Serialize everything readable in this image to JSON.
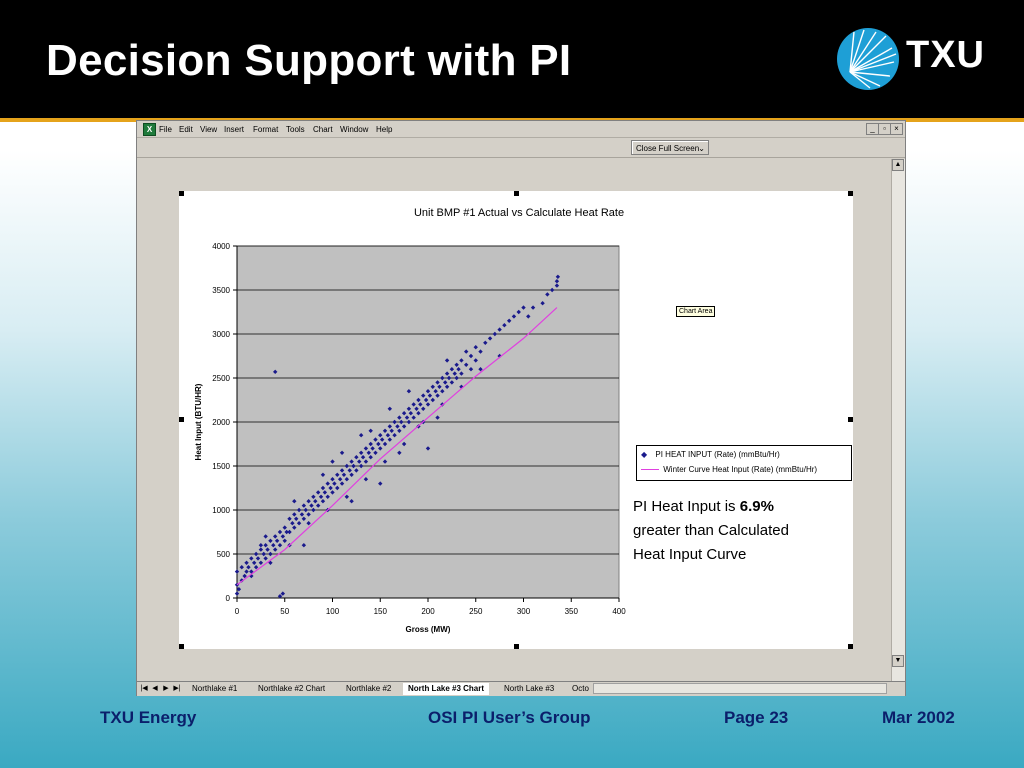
{
  "slide": {
    "title": "Decision Support with PI",
    "logo_text": "TXU",
    "footer": {
      "company": "TXU Energy",
      "event": "OSI PI User’s Group",
      "page": "Page 23",
      "date": "Mar 2002"
    }
  },
  "excel": {
    "menu": [
      "File",
      "Edit",
      "View",
      "Insert",
      "Format",
      "Tools",
      "Chart",
      "Window",
      "Help"
    ],
    "window_buttons": [
      "_",
      "▫",
      "×"
    ],
    "close_full_screen": "Close Full Screen",
    "tooltip": "Chart Area",
    "tabs": [
      "Northlake #1",
      "Northlake #2 Chart",
      "Northlake #2",
      "North Lake #3 Chart",
      "North Lake #3",
      "Octo"
    ],
    "active_tab": "North Lake #3 Chart"
  },
  "annotation": {
    "prefix": "PI Heat Input is ",
    "value": "6.9%",
    "suffix_line1": "greater than Calculated",
    "line2": "Heat Input Curve"
  },
  "chart_data": {
    "type": "scatter",
    "title": "Unit BMP #1 Actual vs Calculate Heat Rate",
    "xlabel": "Gross (MW)",
    "ylabel": "Heat Input (BTU/HR)",
    "xlim": [
      0,
      400
    ],
    "ylim": [
      0,
      4000
    ],
    "x_ticks": [
      0,
      50,
      100,
      150,
      200,
      250,
      300,
      350,
      400
    ],
    "y_ticks": [
      0,
      500,
      1000,
      1500,
      2000,
      2500,
      3000,
      3500,
      4000
    ],
    "grid": "horizontal",
    "plot_background": "#c0c0c0",
    "legend_position": "right",
    "series": [
      {
        "name": "PI HEAT INPUT (Rate) (mmBtu/Hr)",
        "kind": "scatter",
        "marker": "diamond",
        "color": "#1a1a8c",
        "points": [
          [
            0,
            50
          ],
          [
            0,
            150
          ],
          [
            0,
            300
          ],
          [
            2,
            100
          ],
          [
            5,
            200
          ],
          [
            5,
            350
          ],
          [
            8,
            250
          ],
          [
            10,
            300
          ],
          [
            10,
            400
          ],
          [
            12,
            350
          ],
          [
            15,
            450
          ],
          [
            15,
            300
          ],
          [
            18,
            400
          ],
          [
            20,
            500
          ],
          [
            20,
            350
          ],
          [
            22,
            450
          ],
          [
            25,
            400
          ],
          [
            25,
            550
          ],
          [
            28,
            500
          ],
          [
            30,
            450
          ],
          [
            30,
            600
          ],
          [
            32,
            550
          ],
          [
            35,
            500
          ],
          [
            35,
            650
          ],
          [
            38,
            600
          ],
          [
            40,
            550
          ],
          [
            40,
            700
          ],
          [
            42,
            650
          ],
          [
            45,
            600
          ],
          [
            45,
            750
          ],
          [
            48,
            700
          ],
          [
            50,
            800
          ],
          [
            50,
            650
          ],
          [
            52,
            750
          ],
          [
            55,
            900
          ],
          [
            55,
            750
          ],
          [
            58,
            850
          ],
          [
            60,
            950
          ],
          [
            60,
            800
          ],
          [
            62,
            900
          ],
          [
            65,
            1000
          ],
          [
            65,
            850
          ],
          [
            68,
            950
          ],
          [
            70,
            1050
          ],
          [
            70,
            900
          ],
          [
            72,
            1000
          ],
          [
            75,
            1100
          ],
          [
            75,
            950
          ],
          [
            78,
            1050
          ],
          [
            80,
            1150
          ],
          [
            80,
            1000
          ],
          [
            82,
            1100
          ],
          [
            85,
            1200
          ],
          [
            85,
            1050
          ],
          [
            88,
            1150
          ],
          [
            90,
            1250
          ],
          [
            90,
            1100
          ],
          [
            92,
            1200
          ],
          [
            95,
            1300
          ],
          [
            95,
            1150
          ],
          [
            98,
            1250
          ],
          [
            100,
            1350
          ],
          [
            100,
            1200
          ],
          [
            102,
            1300
          ],
          [
            105,
            1400
          ],
          [
            105,
            1250
          ],
          [
            108,
            1350
          ],
          [
            110,
            1450
          ],
          [
            110,
            1300
          ],
          [
            112,
            1400
          ],
          [
            115,
            1500
          ],
          [
            115,
            1350
          ],
          [
            118,
            1450
          ],
          [
            120,
            1550
          ],
          [
            120,
            1400
          ],
          [
            122,
            1500
          ],
          [
            125,
            1600
          ],
          [
            125,
            1450
          ],
          [
            128,
            1550
          ],
          [
            130,
            1650
          ],
          [
            130,
            1500
          ],
          [
            132,
            1600
          ],
          [
            135,
            1700
          ],
          [
            135,
            1550
          ],
          [
            138,
            1650
          ],
          [
            140,
            1750
          ],
          [
            140,
            1600
          ],
          [
            142,
            1700
          ],
          [
            145,
            1800
          ],
          [
            145,
            1650
          ],
          [
            148,
            1750
          ],
          [
            150,
            1850
          ],
          [
            150,
            1700
          ],
          [
            152,
            1800
          ],
          [
            155,
            1900
          ],
          [
            155,
            1750
          ],
          [
            158,
            1850
          ],
          [
            160,
            1950
          ],
          [
            160,
            1800
          ],
          [
            162,
            1900
          ],
          [
            165,
            2000
          ],
          [
            165,
            1850
          ],
          [
            168,
            1950
          ],
          [
            170,
            2050
          ],
          [
            170,
            1900
          ],
          [
            172,
            2000
          ],
          [
            175,
            2100
          ],
          [
            175,
            1950
          ],
          [
            178,
            2050
          ],
          [
            180,
            2150
          ],
          [
            180,
            2000
          ],
          [
            182,
            2100
          ],
          [
            185,
            2200
          ],
          [
            185,
            2050
          ],
          [
            188,
            2150
          ],
          [
            190,
            2250
          ],
          [
            190,
            2100
          ],
          [
            192,
            2200
          ],
          [
            195,
            2300
          ],
          [
            195,
            2150
          ],
          [
            198,
            2250
          ],
          [
            200,
            2350
          ],
          [
            200,
            2200
          ],
          [
            202,
            2300
          ],
          [
            205,
            2400
          ],
          [
            205,
            2250
          ],
          [
            208,
            2350
          ],
          [
            210,
            2450
          ],
          [
            210,
            2300
          ],
          [
            212,
            2400
          ],
          [
            215,
            2500
          ],
          [
            215,
            2350
          ],
          [
            218,
            2450
          ],
          [
            220,
            2550
          ],
          [
            220,
            2400
          ],
          [
            222,
            2500
          ],
          [
            225,
            2600
          ],
          [
            225,
            2450
          ],
          [
            228,
            2550
          ],
          [
            230,
            2650
          ],
          [
            230,
            2500
          ],
          [
            232,
            2600
          ],
          [
            235,
            2700
          ],
          [
            235,
            2550
          ],
          [
            240,
            2650
          ],
          [
            240,
            2800
          ],
          [
            245,
            2750
          ],
          [
            245,
            2600
          ],
          [
            250,
            2850
          ],
          [
            250,
            2700
          ],
          [
            255,
            2800
          ],
          [
            260,
            2900
          ],
          [
            265,
            2950
          ],
          [
            270,
            3000
          ],
          [
            275,
            3050
          ],
          [
            280,
            3100
          ],
          [
            285,
            3150
          ],
          [
            290,
            3200
          ],
          [
            295,
            3250
          ],
          [
            300,
            3300
          ],
          [
            305,
            3200
          ],
          [
            310,
            3300
          ],
          [
            320,
            3350
          ],
          [
            325,
            3450
          ],
          [
            330,
            3500
          ],
          [
            335,
            3550
          ],
          [
            335,
            3600
          ],
          [
            336,
            3650
          ],
          [
            40,
            2570
          ],
          [
            48,
            50
          ],
          [
            45,
            20
          ],
          [
            120,
            1100
          ],
          [
            150,
            1300
          ],
          [
            200,
            1700
          ],
          [
            90,
            1400
          ],
          [
            110,
            1650
          ],
          [
            140,
            1900
          ],
          [
            180,
            2350
          ],
          [
            220,
            2700
          ],
          [
            60,
            1100
          ],
          [
            30,
            700
          ],
          [
            70,
            600
          ],
          [
            130,
            1850
          ],
          [
            170,
            1650
          ],
          [
            210,
            2050
          ],
          [
            160,
            2150
          ],
          [
            190,
            1950
          ],
          [
            100,
            1550
          ],
          [
            25,
            600
          ],
          [
            15,
            250
          ],
          [
            35,
            400
          ],
          [
            55,
            600
          ],
          [
            75,
            850
          ],
          [
            95,
            1000
          ],
          [
            115,
            1150
          ],
          [
            135,
            1350
          ],
          [
            155,
            1550
          ],
          [
            175,
            1750
          ],
          [
            195,
            2000
          ],
          [
            215,
            2200
          ],
          [
            235,
            2400
          ],
          [
            255,
            2600
          ],
          [
            275,
            2750
          ]
        ]
      },
      {
        "name": "Winter Curve Heat Input (Rate) (mmBtu/Hr)",
        "kind": "line",
        "color": "#e040e0",
        "points": [
          [
            0,
            150
          ],
          [
            50,
            550
          ],
          [
            100,
            1050
          ],
          [
            150,
            1580
          ],
          [
            200,
            2050
          ],
          [
            250,
            2520
          ],
          [
            300,
            2950
          ],
          [
            335,
            3300
          ]
        ]
      }
    ]
  }
}
